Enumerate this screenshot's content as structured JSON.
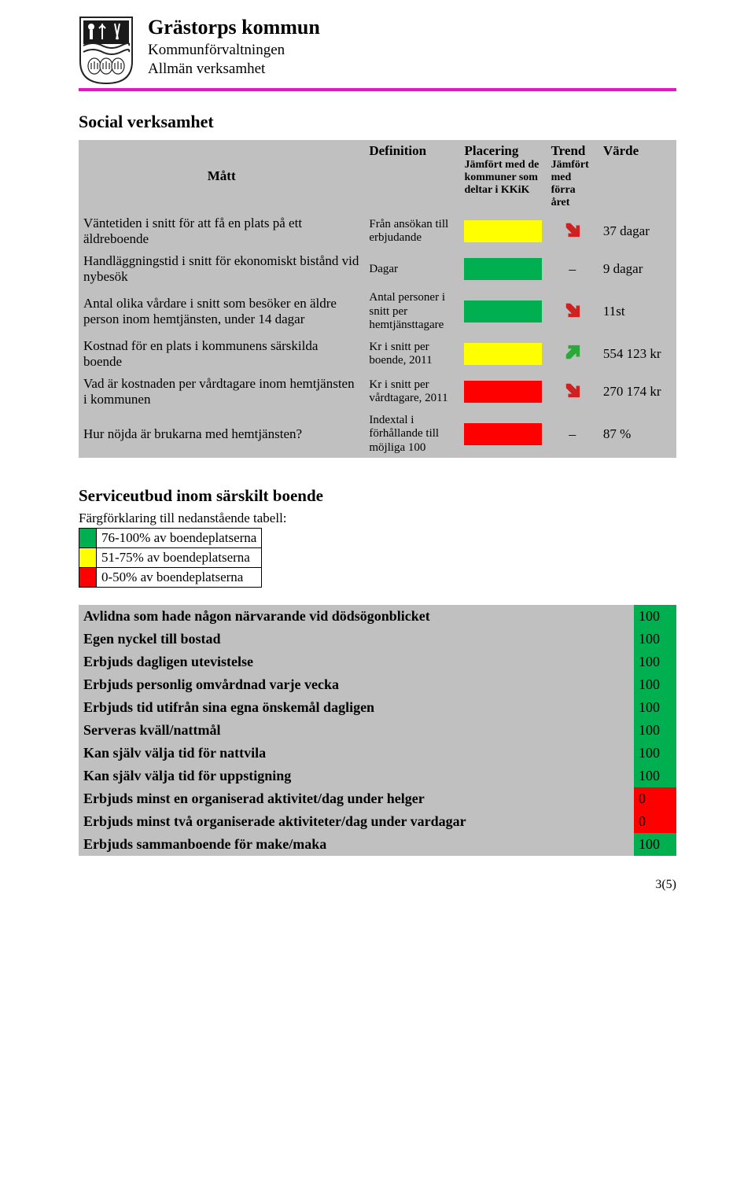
{
  "colors": {
    "magenta": "#e815c4",
    "header_gray": "#c0c0c0",
    "green": "#00b050",
    "yellow": "#ffff00",
    "red": "#ff0000",
    "arrow_red": "#d02020",
    "arrow_green": "#2aa83a"
  },
  "header": {
    "org": "Grästorps kommun",
    "line1": "Kommunförvaltningen",
    "line2": "Allmän verksamhet"
  },
  "section_title": "Social verksamhet",
  "table_headers": {
    "matt": "Mått",
    "def": "Definition",
    "plac_title": "Placering",
    "plac_sub": "Jämfört med de kommuner som deltar i KKiK",
    "trend_title": "Trend",
    "trend_sub": "Jämfört med förra året",
    "value": "Värde"
  },
  "rows": [
    {
      "matt": "Väntetiden i snitt för att få en plats på ett äldreboende",
      "def": "Från ansökan till erbjudande",
      "placering_color": "#ffff00",
      "trend": "down",
      "value": "37 dagar"
    },
    {
      "matt": "Handläggningstid i snitt för ekonomiskt bistånd vid nybesök",
      "def": "Dagar",
      "placering_color": "#00b050",
      "trend": "dash",
      "value": "9 dagar"
    },
    {
      "matt": "Antal olika vårdare i snitt som besöker en äldre person inom hemtjänsten, under 14 dagar",
      "def": "Antal personer i snitt per hemtjänsttagare",
      "placering_color": "#00b050",
      "trend": "down",
      "value": "11st"
    },
    {
      "matt": "Kostnad för en plats i kommunens särskilda boende",
      "def": "Kr i snitt per boende, 2011",
      "placering_color": "#ffff00",
      "trend": "up",
      "value": "554 123 kr"
    },
    {
      "matt": "Vad är kostnaden per vårdtagare inom hemtjänsten i kommunen",
      "def": "Kr i snitt per vårdtagare, 2011",
      "placering_color": "#ff0000",
      "trend": "down",
      "value": "270 174 kr"
    },
    {
      "matt": "Hur nöjda är brukarna med hemtjänsten?",
      "def": "Indextal i förhållande till möjliga 100",
      "placering_color": "#ff0000",
      "trend": "dash",
      "value": "87 %"
    }
  ],
  "service_section": {
    "title": "Serviceutbud inom särskilt boende",
    "legend_caption": "Färgförklaring till nedanstående tabell:",
    "legend": [
      {
        "color": "#00b050",
        "label": "76-100% av boendeplatserna"
      },
      {
        "color": "#ffff00",
        "label": "51-75% av boendeplatserna"
      },
      {
        "color": "#ff0000",
        "label": "0-50% av boendeplatserna"
      }
    ],
    "items": [
      {
        "label": "Avlidna som hade någon närvarande vid dödsögonblicket",
        "score": 100,
        "color": "#00b050"
      },
      {
        "label": "Egen nyckel  till bostad",
        "score": 100,
        "color": "#00b050"
      },
      {
        "label": "Erbjuds dagligen utevistelse",
        "score": 100,
        "color": "#00b050"
      },
      {
        "label": "Erbjuds personlig omvårdnad varje vecka",
        "score": 100,
        "color": "#00b050"
      },
      {
        "label": "Erbjuds tid utifrån sina egna önskemål dagligen",
        "score": 100,
        "color": "#00b050"
      },
      {
        "label": "Serveras kväll/nattmål",
        "score": 100,
        "color": "#00b050"
      },
      {
        "label": "Kan själv välja tid för nattvila",
        "score": 100,
        "color": "#00b050"
      },
      {
        "label": "Kan själv välja tid för uppstigning",
        "score": 100,
        "color": "#00b050"
      },
      {
        "label": "Erbjuds minst en organiserad aktivitet/dag under helger",
        "score": 0,
        "color": "#ff0000"
      },
      {
        "label": "Erbjuds minst två organiserade aktiviteter/dag under vardagar",
        "score": 0,
        "color": "#ff0000"
      },
      {
        "label": "Erbjuds sammanboende för make/maka",
        "score": 100,
        "color": "#00b050"
      }
    ]
  },
  "page_number": "3(5)"
}
